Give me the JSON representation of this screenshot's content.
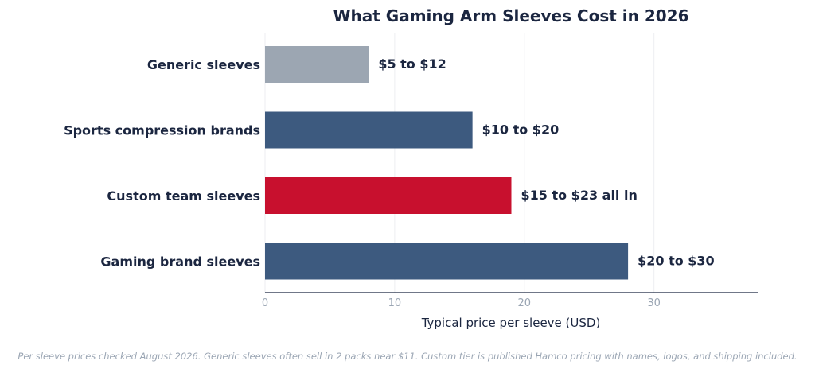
{
  "chart_data": {
    "type": "bar",
    "orientation": "horizontal",
    "title": "What Gaming Arm Sleeves Cost in 2026",
    "xlabel": "Typical price per sleeve (USD)",
    "ylabel": "",
    "xlim": [
      0,
      38
    ],
    "xticks": [
      0,
      10,
      20,
      30
    ],
    "grid": true,
    "categories": [
      "Generic sleeves",
      "Sports compression brands",
      "Custom team sleeves",
      "Gaming brand sleeves"
    ],
    "values": [
      8,
      16,
      19,
      28
    ],
    "data_labels": [
      "$5 to $12",
      "$10 to $20",
      "$15 to $23 all in",
      "$20 to $30"
    ],
    "colors": [
      "#9ca6b2",
      "#3d5a7f",
      "#c8102e",
      "#3d5a7f"
    ],
    "footnote": "Per sleeve prices checked August 2026. Generic sleeves often sell in 2 packs near $11. Custom tier is published Hamco pricing with names, logos, and shipping included."
  }
}
